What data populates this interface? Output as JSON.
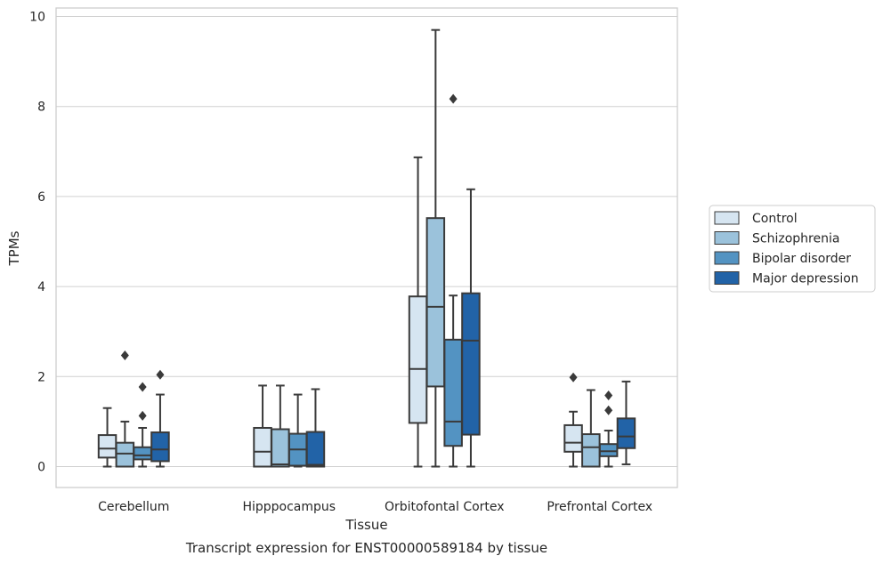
{
  "caption": "Transcript expression for ENST00000589184 by tissue",
  "chart_data": {
    "type": "box",
    "title": "",
    "xlabel": "Tissue",
    "ylabel": "TPMs",
    "ylim": [
      -0.45,
      10.2
    ],
    "yticks": [
      0,
      2,
      4,
      6,
      8,
      10
    ],
    "grid": true,
    "legend_position": "right",
    "categories": [
      "Cerebellum",
      "Hipppocampus",
      "Orbitofontal Cortex",
      "Prefrontal Cortex"
    ],
    "series": [
      {
        "name": "Control",
        "color": "#d6e5f1",
        "boxes": [
          {
            "whislo": 0.0,
            "q1": 0.2,
            "med": 0.4,
            "q3": 0.7,
            "whishi": 1.3,
            "fliers": []
          },
          {
            "whislo": 0.0,
            "q1": 0.0,
            "med": 0.33,
            "q3": 0.86,
            "whishi": 1.8,
            "fliers": []
          },
          {
            "whislo": 0.0,
            "q1": 0.97,
            "med": 2.17,
            "q3": 3.78,
            "whishi": 6.87,
            "fliers": []
          },
          {
            "whislo": 0.0,
            "q1": 0.33,
            "med": 0.53,
            "q3": 0.92,
            "whishi": 1.22,
            "fliers": [
              1.98
            ]
          }
        ]
      },
      {
        "name": "Schizophrenia",
        "color": "#9bc2db",
        "boxes": [
          {
            "whislo": 0.0,
            "q1": 0.0,
            "med": 0.29,
            "q3": 0.53,
            "whishi": 1.0,
            "fliers": [
              2.47
            ]
          },
          {
            "whislo": 0.0,
            "q1": 0.0,
            "med": 0.05,
            "q3": 0.83,
            "whishi": 1.8,
            "fliers": []
          },
          {
            "whislo": 0.0,
            "q1": 1.78,
            "med": 3.55,
            "q3": 5.52,
            "whishi": 9.7,
            "fliers": []
          },
          {
            "whislo": 0.0,
            "q1": 0.0,
            "med": 0.43,
            "q3": 0.72,
            "whishi": 1.7,
            "fliers": []
          }
        ]
      },
      {
        "name": "Bipolar disorder",
        "color": "#5393c2",
        "boxes": [
          {
            "whislo": 0.0,
            "q1": 0.16,
            "med": 0.25,
            "q3": 0.43,
            "whishi": 0.86,
            "fliers": [
              1.13,
              1.77
            ]
          },
          {
            "whislo": 0.0,
            "q1": 0.02,
            "med": 0.38,
            "q3": 0.73,
            "whishi": 1.6,
            "fliers": []
          },
          {
            "whislo": 0.0,
            "q1": 0.46,
            "med": 1.0,
            "q3": 2.82,
            "whishi": 3.8,
            "fliers": [
              8.17
            ]
          },
          {
            "whislo": 0.0,
            "q1": 0.23,
            "med": 0.34,
            "q3": 0.5,
            "whishi": 0.8,
            "fliers": [
              1.25,
              1.58
            ]
          }
        ]
      },
      {
        "name": "Major depression",
        "color": "#2263a7",
        "boxes": [
          {
            "whislo": 0.0,
            "q1": 0.12,
            "med": 0.38,
            "q3": 0.76,
            "whishi": 1.6,
            "fliers": [
              2.04
            ]
          },
          {
            "whislo": 0.0,
            "q1": 0.0,
            "med": 0.04,
            "q3": 0.77,
            "whishi": 1.72,
            "fliers": []
          },
          {
            "whislo": 0.0,
            "q1": 0.71,
            "med": 2.8,
            "q3": 3.85,
            "whishi": 6.16,
            "fliers": []
          },
          {
            "whislo": 0.05,
            "q1": 0.41,
            "med": 0.67,
            "q3": 1.07,
            "whishi": 1.89,
            "fliers": []
          }
        ]
      }
    ]
  }
}
